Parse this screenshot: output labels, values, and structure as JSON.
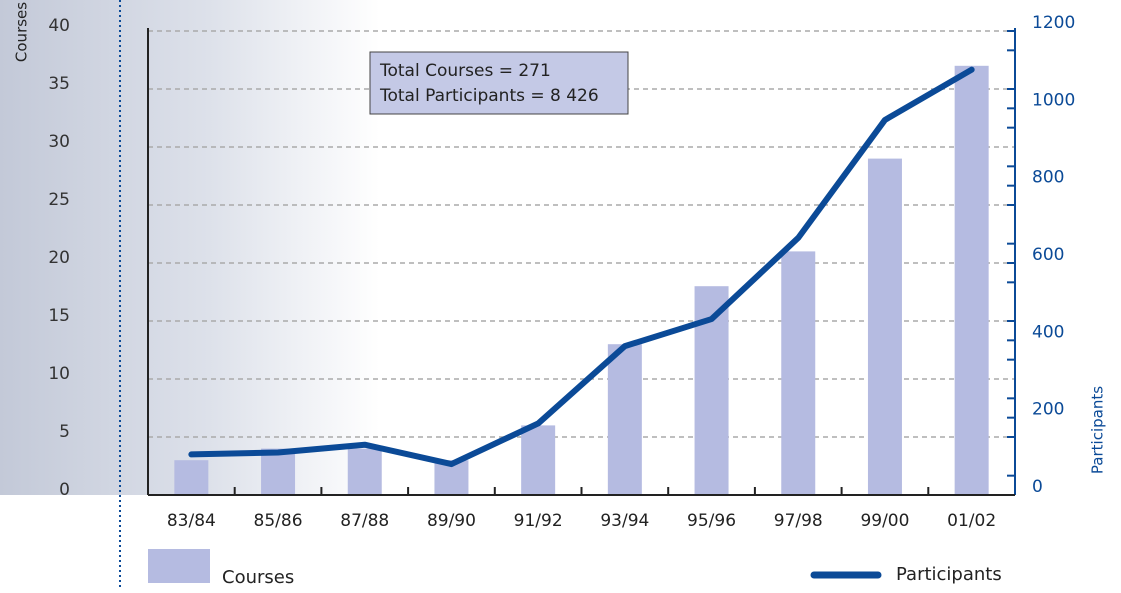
{
  "chart_data": {
    "type": "bar-line",
    "categories": [
      "83/84",
      "85/86",
      "87/88",
      "89/90",
      "91/92",
      "93/94",
      "95/96",
      "97/98",
      "99/00",
      "01/02"
    ],
    "series": [
      {
        "name": "Courses",
        "type": "bar",
        "color": "#b5bbe1",
        "values": [
          3,
          4,
          4,
          3,
          6,
          13,
          18,
          21,
          29,
          37
        ]
      },
      {
        "name": "Participants",
        "type": "line",
        "axis": "y2",
        "color": "#0b4a97",
        "values": [
          105,
          110,
          130,
          80,
          185,
          385,
          455,
          665,
          970,
          1100
        ]
      }
    ],
    "ylabel": "Courses",
    "y2label": "Participants",
    "ylim": [
      0,
      40
    ],
    "yticks": [
      0,
      5,
      10,
      15,
      20,
      25,
      30,
      35,
      40
    ],
    "y2lim": [
      0,
      1200
    ],
    "y2ticks": [
      0,
      200,
      400,
      600,
      800,
      1000,
      1200
    ],
    "annotations": [
      "Total Courses = 271",
      "Total Participants = 8 426"
    ],
    "grid": true
  }
}
